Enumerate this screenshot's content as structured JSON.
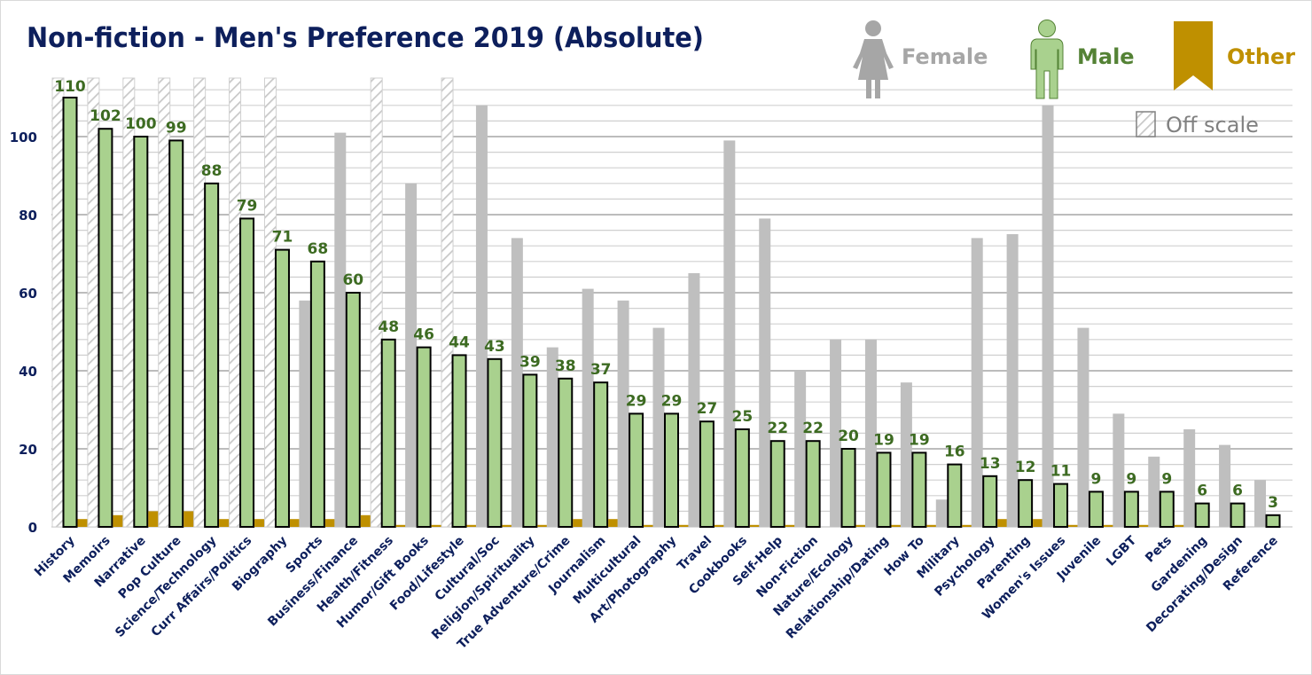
{
  "chart_data": {
    "type": "bar",
    "title": "Non-fiction - Men's Preference 2019 (Absolute)",
    "xlabel": "",
    "ylabel": "",
    "ylim": [
      0,
      115
    ],
    "yticks": [
      0,
      20,
      40,
      60,
      80,
      100
    ],
    "minor_grid_step": 4,
    "grid": true,
    "legend_position": "top-right",
    "categories": [
      "History",
      "Memoirs",
      "Narrative",
      "Pop Culture",
      "Science/Technology",
      "Curr Affairs/Politics",
      "Biography",
      "Sports",
      "Business/Finance",
      "Health/Fitness",
      "Humor/Gift Books",
      "Food/Lifestyle",
      "Cultural/Soc",
      "Religion/Spirituality",
      "True Adventure/Crime",
      "Journalism",
      "Multicultural",
      "Art/Photography",
      "Travel",
      "Cookbooks",
      "Self-Help",
      "Non-Fiction",
      "Nature/Ecology",
      "Relationship/Dating",
      "How To",
      "Military",
      "Psychology",
      "Parenting",
      "Women's Issues",
      "Juvenile",
      "LGBT",
      "Pets",
      "Gardening",
      "Decorating/Design",
      "Reference"
    ],
    "series": [
      {
        "name": "Female",
        "color": "#bfbfbf",
        "values": [
          null,
          null,
          null,
          null,
          null,
          null,
          null,
          58,
          101,
          null,
          88,
          null,
          108,
          74,
          46,
          61,
          58,
          51,
          65,
          99,
          79,
          40,
          48,
          48,
          37,
          7,
          74,
          75,
          108,
          51,
          29,
          18,
          25,
          21,
          12
        ],
        "off_scale": [
          true,
          true,
          true,
          true,
          true,
          true,
          true,
          false,
          false,
          true,
          false,
          true,
          false,
          false,
          false,
          false,
          false,
          false,
          false,
          false,
          false,
          false,
          false,
          false,
          false,
          false,
          false,
          false,
          false,
          false,
          false,
          false,
          false,
          false,
          false
        ]
      },
      {
        "name": "Male",
        "color": "#a9d18e",
        "values": [
          110,
          102,
          100,
          99,
          88,
          79,
          71,
          68,
          60,
          48,
          46,
          44,
          43,
          39,
          38,
          37,
          29,
          29,
          27,
          25,
          22,
          22,
          20,
          19,
          19,
          16,
          13,
          12,
          11,
          9,
          9,
          9,
          6,
          6,
          3
        ],
        "data_labels": [
          "110",
          "102",
          "100",
          "99",
          "88",
          "79",
          "71",
          "68",
          "60",
          "48",
          "46",
          "44",
          "43",
          "39",
          "38",
          "37",
          "29",
          "29",
          "27",
          "25",
          "22",
          "22",
          "20",
          "19",
          "19",
          "16",
          "13",
          "12",
          "11",
          "9",
          "9",
          "9",
          "6",
          "6",
          "3"
        ]
      },
      {
        "name": "Other",
        "color": "#bf9000",
        "values": [
          2,
          3,
          4,
          4,
          2,
          2,
          2,
          2,
          3,
          0.5,
          0.5,
          0.5,
          0.5,
          0.5,
          2,
          2,
          0.5,
          0.5,
          0.5,
          0.5,
          0.5,
          0,
          0.5,
          0.5,
          0.5,
          0.5,
          2,
          2,
          0.5,
          0.5,
          0.5,
          0.5,
          0,
          0,
          0
        ]
      }
    ]
  },
  "legend": {
    "female_label": "Female",
    "male_label": "Male",
    "other_label": "Other",
    "offscale_label": "Off scale",
    "female_color": "#a6a6a6",
    "male_color": "#548235",
    "other_color": "#bf9000"
  },
  "colors": {
    "title": "#0d1f5c",
    "axis_text": "#0d1f5c",
    "data_label": "#3d6b22",
    "grid_major": "#a6a6a6",
    "grid_minor": "#d0d0d0",
    "bar_outline": "#000000"
  }
}
